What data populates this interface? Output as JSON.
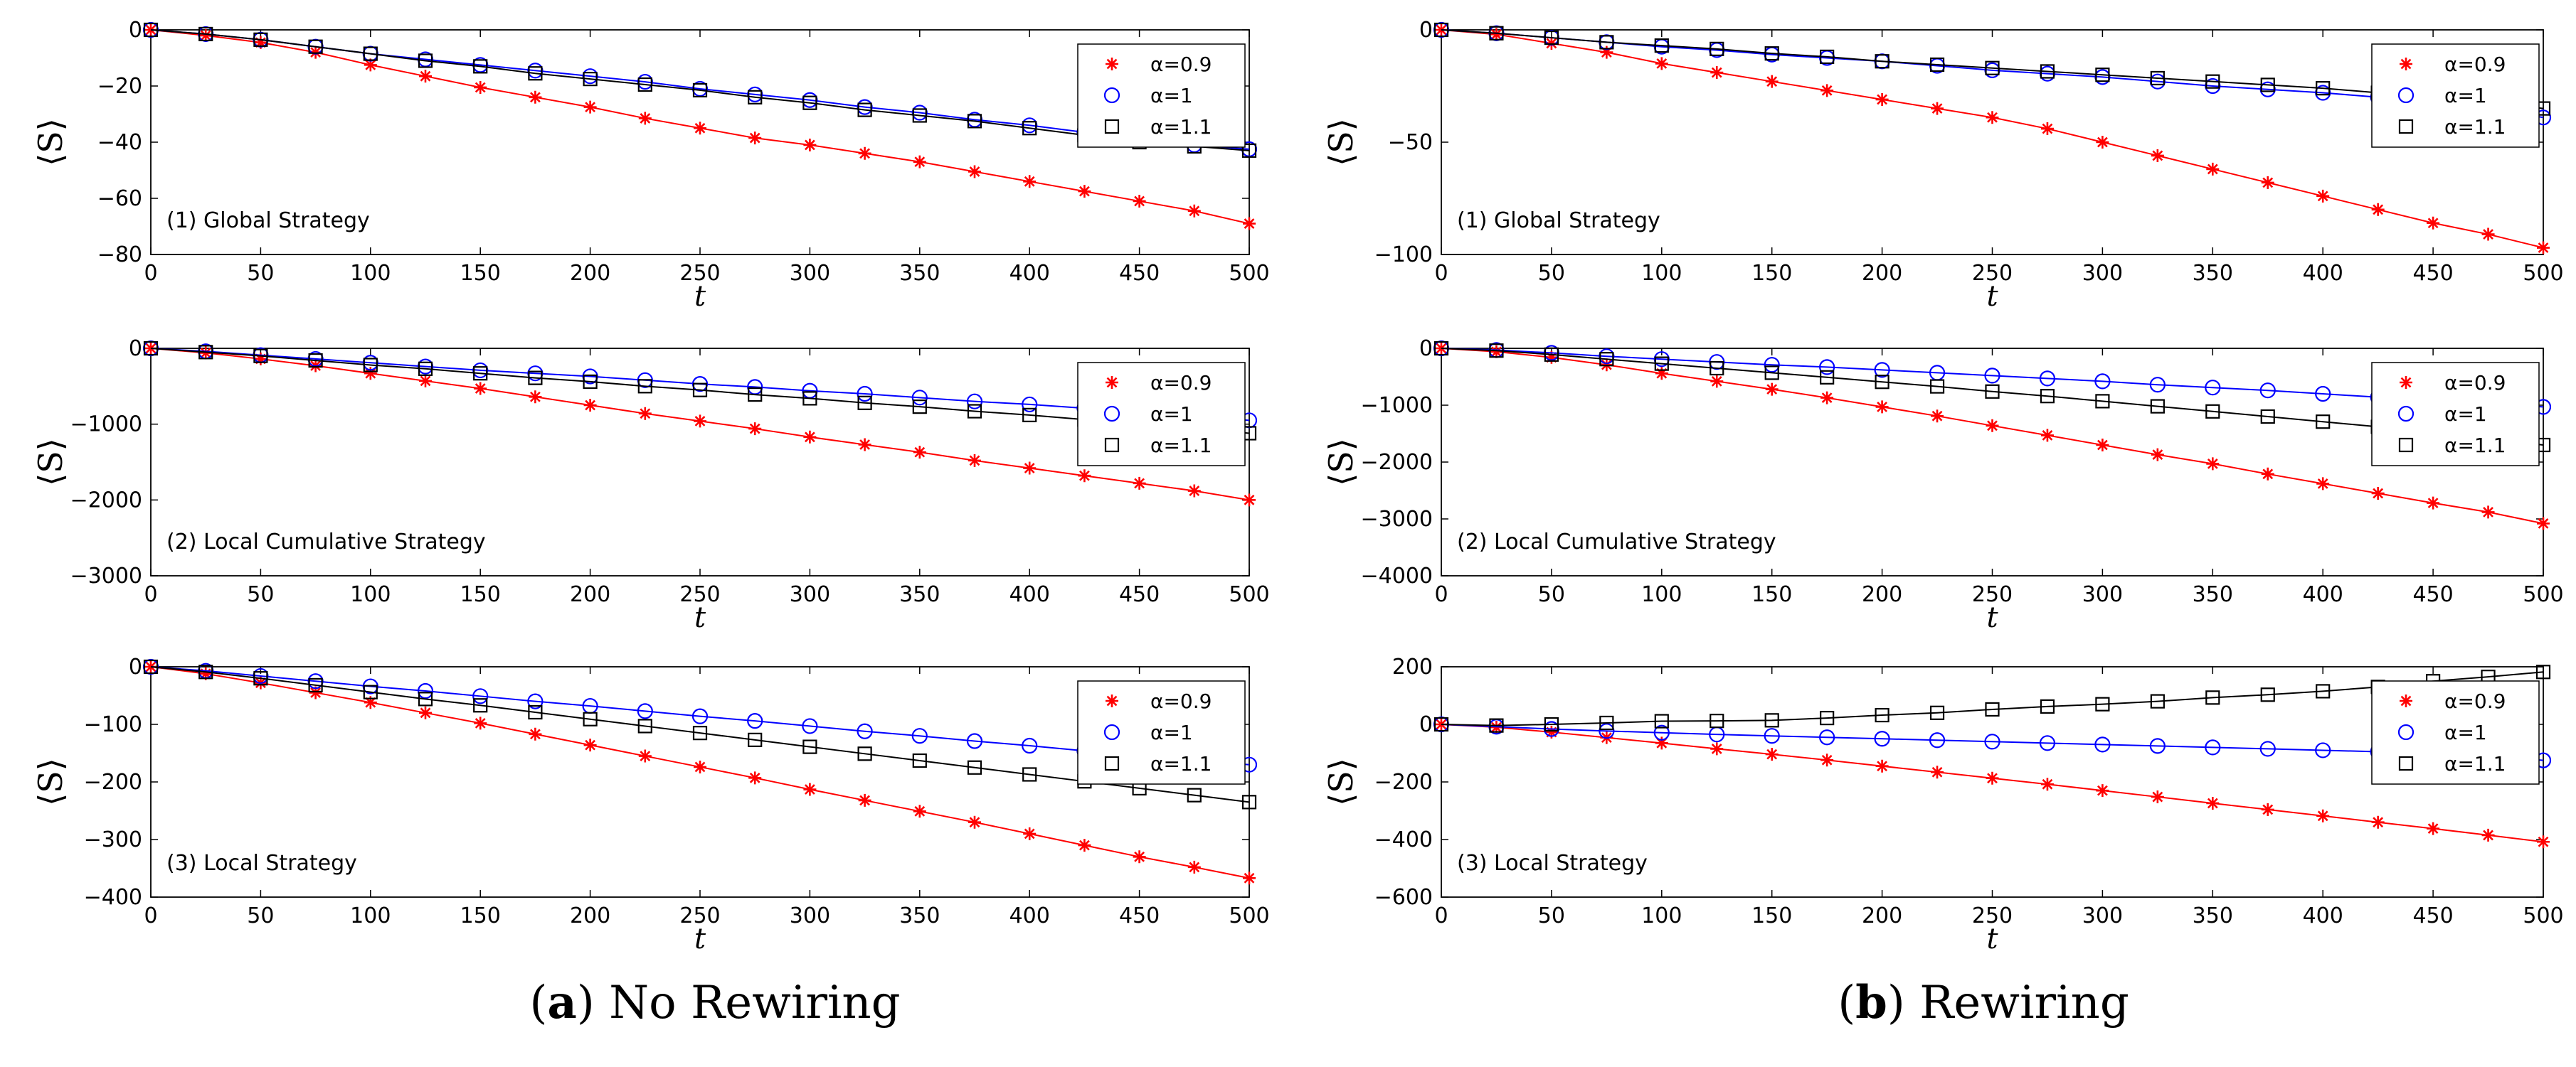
{
  "figure": {
    "captions": [
      {
        "letter": "a",
        "text": "No Rewiring"
      },
      {
        "letter": "b",
        "text": "Rewiring"
      }
    ]
  },
  "chart_data": [
    {
      "type": "line",
      "column": "a",
      "row": 1,
      "panel_label": "(1) Global Strategy",
      "xlabel": "t",
      "ylabel": "⟨S⟩",
      "xlim": [
        0,
        500
      ],
      "ylim": [
        -80,
        0
      ],
      "xticks": [
        0,
        50,
        100,
        150,
        200,
        250,
        300,
        350,
        400,
        450,
        500
      ],
      "yticks": [
        0,
        -20,
        -40,
        -60,
        -80
      ],
      "legend_position": "top-right",
      "x": [
        0,
        25,
        50,
        75,
        100,
        125,
        150,
        175,
        200,
        225,
        250,
        275,
        300,
        325,
        350,
        375,
        400,
        425,
        450,
        475,
        500
      ],
      "series": [
        {
          "name": "α=0.9",
          "color": "#ff0000",
          "marker": "star",
          "values": [
            0,
            -2,
            -4.5,
            -8,
            -12.5,
            -16.5,
            -20.5,
            -24,
            -27.5,
            -31.5,
            -35,
            -38.5,
            -41,
            -44,
            -47,
            -50.5,
            -54,
            -57.5,
            -61,
            -64.5,
            -69
          ]
        },
        {
          "name": "α=1",
          "color": "#0000ff",
          "marker": "circle",
          "values": [
            0,
            -1.5,
            -3.5,
            -6,
            -8.5,
            -10.5,
            -12.5,
            -14.5,
            -16.5,
            -18.5,
            -21,
            -23,
            -25,
            -27.5,
            -29.5,
            -32,
            -34,
            -36.5,
            -39,
            -41,
            -42.5
          ]
        },
        {
          "name": "α=1.1",
          "color": "#000000",
          "marker": "square",
          "values": [
            0,
            -1.5,
            -3.5,
            -6,
            -8.5,
            -11,
            -13,
            -15.5,
            -17.5,
            -19.5,
            -21.5,
            -24,
            -26,
            -28.5,
            -30.5,
            -32.5,
            -35,
            -37.5,
            -40,
            -41.5,
            -43
          ]
        }
      ]
    },
    {
      "type": "line",
      "column": "a",
      "row": 2,
      "panel_label": "(2) Local Cumulative Strategy",
      "xlabel": "t",
      "ylabel": "⟨S⟩",
      "xlim": [
        0,
        500
      ],
      "ylim": [
        -3000,
        0
      ],
      "xticks": [
        0,
        50,
        100,
        150,
        200,
        250,
        300,
        350,
        400,
        450,
        500
      ],
      "yticks": [
        0,
        -1000,
        -2000,
        -3000
      ],
      "legend_position": "top-right",
      "x": [
        0,
        25,
        50,
        75,
        100,
        125,
        150,
        175,
        200,
        225,
        250,
        275,
        300,
        325,
        350,
        375,
        400,
        425,
        450,
        475,
        500
      ],
      "series": [
        {
          "name": "α=0.9",
          "color": "#ff0000",
          "marker": "star",
          "values": [
            0,
            -60,
            -140,
            -230,
            -330,
            -430,
            -530,
            -640,
            -750,
            -860,
            -960,
            -1060,
            -1170,
            -1270,
            -1370,
            -1480,
            -1580,
            -1680,
            -1780,
            -1880,
            -2000
          ]
        },
        {
          "name": "α=1",
          "color": "#0000ff",
          "marker": "circle",
          "values": [
            0,
            -40,
            -90,
            -140,
            -190,
            -240,
            -290,
            -330,
            -370,
            -420,
            -470,
            -510,
            -560,
            -600,
            -650,
            -700,
            -740,
            -790,
            -830,
            -880,
            -950
          ]
        },
        {
          "name": "α=1.1",
          "color": "#000000",
          "marker": "square",
          "values": [
            0,
            -50,
            -100,
            -160,
            -220,
            -270,
            -330,
            -390,
            -440,
            -500,
            -550,
            -610,
            -660,
            -720,
            -770,
            -830,
            -880,
            -940,
            -990,
            -1050,
            -1120
          ]
        }
      ]
    },
    {
      "type": "line",
      "column": "a",
      "row": 3,
      "panel_label": "(3) Local Strategy",
      "xlabel": "t",
      "ylabel": "⟨S⟩",
      "xlim": [
        0,
        500
      ],
      "ylim": [
        -400,
        0
      ],
      "xticks": [
        0,
        50,
        100,
        150,
        200,
        250,
        300,
        350,
        400,
        450,
        500
      ],
      "yticks": [
        0,
        -100,
        -200,
        -300,
        -400
      ],
      "legend_position": "top-right",
      "x": [
        0,
        25,
        50,
        75,
        100,
        125,
        150,
        175,
        200,
        225,
        250,
        275,
        300,
        325,
        350,
        375,
        400,
        425,
        450,
        475,
        500
      ],
      "series": [
        {
          "name": "α=0.9",
          "color": "#ff0000",
          "marker": "star",
          "values": [
            0,
            -12,
            -28,
            -45,
            -62,
            -80,
            -98,
            -117,
            -136,
            -155,
            -174,
            -193,
            -213,
            -232,
            -251,
            -270,
            -290,
            -310,
            -330,
            -348,
            -367
          ]
        },
        {
          "name": "α=1",
          "color": "#0000ff",
          "marker": "circle",
          "values": [
            0,
            -7,
            -16,
            -25,
            -34,
            -42,
            -51,
            -60,
            -68,
            -77,
            -86,
            -94,
            -103,
            -112,
            -120,
            -129,
            -137,
            -146,
            -154,
            -162,
            -170
          ]
        },
        {
          "name": "α=1.1",
          "color": "#000000",
          "marker": "square",
          "values": [
            0,
            -9,
            -20,
            -32,
            -44,
            -56,
            -67,
            -79,
            -91,
            -103,
            -115,
            -127,
            -139,
            -151,
            -163,
            -175,
            -187,
            -199,
            -211,
            -223,
            -235
          ]
        }
      ]
    },
    {
      "type": "line",
      "column": "b",
      "row": 1,
      "panel_label": "(1) Global Strategy",
      "xlabel": "t",
      "ylabel": "⟨S⟩",
      "xlim": [
        0,
        500
      ],
      "ylim": [
        -100,
        0
      ],
      "xticks": [
        0,
        50,
        100,
        150,
        200,
        250,
        300,
        350,
        400,
        450,
        500
      ],
      "yticks": [
        0,
        -50,
        -100
      ],
      "legend_position": "top-right",
      "x": [
        0,
        25,
        50,
        75,
        100,
        125,
        150,
        175,
        200,
        225,
        250,
        275,
        300,
        325,
        350,
        375,
        400,
        425,
        450,
        475,
        500
      ],
      "series": [
        {
          "name": "α=0.9",
          "color": "#ff0000",
          "marker": "star",
          "values": [
            0,
            -2,
            -6,
            -10,
            -15,
            -19,
            -23,
            -27,
            -31,
            -35,
            -39,
            -44,
            -50,
            -56,
            -62,
            -68,
            -74,
            -80,
            -86,
            -91,
            -97
          ]
        },
        {
          "name": "α=1",
          "color": "#0000ff",
          "marker": "circle",
          "values": [
            0,
            -1.5,
            -3.5,
            -5.5,
            -7.5,
            -9,
            -11,
            -12.5,
            -14,
            -16,
            -18,
            -19.5,
            -21,
            -23,
            -25,
            -26.5,
            -28,
            -30,
            -32,
            -35,
            -39
          ]
        },
        {
          "name": "α=1.1",
          "color": "#000000",
          "marker": "square",
          "values": [
            0,
            -1.5,
            -3.5,
            -5.5,
            -7,
            -8.5,
            -10.5,
            -12,
            -14,
            -15.5,
            -17,
            -18.5,
            -20,
            -21.5,
            -23,
            -24.5,
            -26,
            -28,
            -30,
            -32,
            -35
          ]
        }
      ]
    },
    {
      "type": "line",
      "column": "b",
      "row": 2,
      "panel_label": "(2) Local Cumulative Strategy",
      "xlabel": "t",
      "ylabel": "⟨S⟩",
      "xlim": [
        0,
        500
      ],
      "ylim": [
        -4000,
        0
      ],
      "xticks": [
        0,
        50,
        100,
        150,
        200,
        250,
        300,
        350,
        400,
        450,
        500
      ],
      "yticks": [
        0,
        -1000,
        -2000,
        -3000,
        -4000
      ],
      "legend_position": "top-right",
      "x": [
        0,
        25,
        50,
        75,
        100,
        125,
        150,
        175,
        200,
        225,
        250,
        275,
        300,
        325,
        350,
        375,
        400,
        425,
        450,
        475,
        500
      ],
      "series": [
        {
          "name": "α=0.9",
          "color": "#ff0000",
          "marker": "star",
          "values": [
            0,
            -60,
            -160,
            -290,
            -440,
            -580,
            -720,
            -870,
            -1030,
            -1190,
            -1360,
            -1530,
            -1700,
            -1870,
            -2030,
            -2210,
            -2380,
            -2550,
            -2720,
            -2880,
            -3080
          ]
        },
        {
          "name": "α=1",
          "color": "#0000ff",
          "marker": "circle",
          "values": [
            0,
            -30,
            -80,
            -140,
            -190,
            -240,
            -290,
            -330,
            -380,
            -430,
            -480,
            -530,
            -580,
            -640,
            -690,
            -740,
            -800,
            -860,
            -910,
            -970,
            -1030
          ]
        },
        {
          "name": "α=1.1",
          "color": "#000000",
          "marker": "square",
          "values": [
            0,
            -40,
            -110,
            -190,
            -270,
            -350,
            -430,
            -510,
            -590,
            -670,
            -760,
            -840,
            -930,
            -1020,
            -1110,
            -1200,
            -1290,
            -1380,
            -1480,
            -1590,
            -1700
          ]
        }
      ]
    },
    {
      "type": "line",
      "column": "b",
      "row": 3,
      "panel_label": "(3) Local Strategy",
      "xlabel": "t",
      "ylabel": "⟨S⟩",
      "xlim": [
        0,
        500
      ],
      "ylim": [
        -600,
        200
      ],
      "xticks": [
        0,
        50,
        100,
        150,
        200,
        250,
        300,
        350,
        400,
        450,
        500
      ],
      "yticks": [
        200,
        0,
        -200,
        -400,
        -600
      ],
      "legend_position": "top-right",
      "x": [
        0,
        25,
        50,
        75,
        100,
        125,
        150,
        175,
        200,
        225,
        250,
        275,
        300,
        325,
        350,
        375,
        400,
        425,
        450,
        475,
        500
      ],
      "series": [
        {
          "name": "α=0.9",
          "color": "#ff0000",
          "marker": "star",
          "values": [
            0,
            -10,
            -27,
            -46,
            -65,
            -85,
            -104,
            -124,
            -145,
            -166,
            -187,
            -208,
            -230,
            -252,
            -274,
            -296,
            -318,
            -340,
            -362,
            -385,
            -408
          ]
        },
        {
          "name": "α=1",
          "color": "#0000ff",
          "marker": "circle",
          "values": [
            0,
            -8,
            -16,
            -23,
            -29,
            -35,
            -40,
            -45,
            -50,
            -55,
            -60,
            -65,
            -70,
            -75,
            -80,
            -85,
            -90,
            -95,
            -100,
            -108,
            -125
          ]
        },
        {
          "name": "α=1.1",
          "color": "#000000",
          "marker": "square",
          "values": [
            0,
            -4,
            0,
            5,
            11,
            12,
            14,
            22,
            32,
            40,
            52,
            62,
            70,
            80,
            93,
            103,
            115,
            130,
            150,
            165,
            182
          ]
        }
      ]
    }
  ]
}
